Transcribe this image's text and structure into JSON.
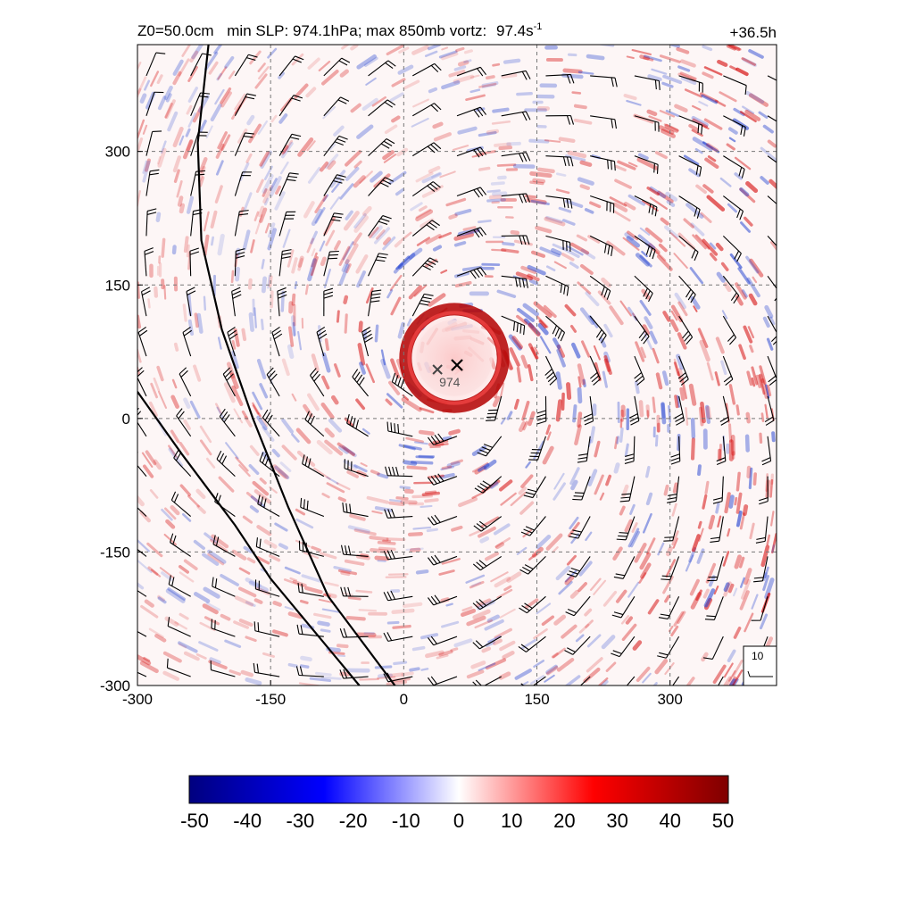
{
  "chart_data": {
    "type": "heatmap",
    "title_parts": {
      "z0": "Z0=50.0cm",
      "slp": "min SLP: 974.1hPa; max 850mb vortz:",
      "vort_value": "97.4s",
      "vort_exp": "-1"
    },
    "time_label": "+36.5h",
    "xlim": [
      -300,
      420
    ],
    "ylim": [
      -300,
      420
    ],
    "x_ticks": [
      -300,
      -150,
      0,
      150,
      300
    ],
    "y_ticks": [
      -300,
      -150,
      0,
      150,
      300
    ],
    "x_tick_labels": [
      "-300",
      "-150",
      "0",
      "150",
      "300"
    ],
    "y_tick_labels": [
      "-300",
      "-150",
      "0",
      "150",
      "300"
    ],
    "grid": "dashed",
    "storm_center": {
      "x": 60,
      "y": 60,
      "marker": "x"
    },
    "slp_min_marker": {
      "x": 38,
      "y": 55,
      "label": "974"
    },
    "eyewall_radius": 55,
    "coastlines": [
      [
        [
          -220,
          420
        ],
        [
          -232,
          310
        ],
        [
          -228,
          200
        ],
        [
          -205,
          100
        ],
        [
          -170,
          0
        ],
        [
          -130,
          -100
        ],
        [
          -85,
          -200
        ],
        [
          -10,
          -300
        ]
      ],
      [
        [
          -300,
          30
        ],
        [
          -250,
          -40
        ],
        [
          -190,
          -120
        ],
        [
          -150,
          -180
        ],
        [
          -100,
          -240
        ],
        [
          -50,
          -300
        ]
      ]
    ],
    "reference_barb": {
      "label": "10"
    },
    "colorbar": {
      "ticks": [
        "-50",
        "-40",
        "-30",
        "-20",
        "-10",
        "0",
        "10",
        "20",
        "30",
        "40",
        "50"
      ],
      "range": [
        -50,
        50
      ],
      "colors": [
        "#00007f",
        "#0000ff",
        "#ffffff",
        "#ff0000",
        "#7f0000"
      ]
    },
    "colors": {
      "positive": "#d40000",
      "negative": "#1f3fd0",
      "barb": "#000000"
    }
  }
}
